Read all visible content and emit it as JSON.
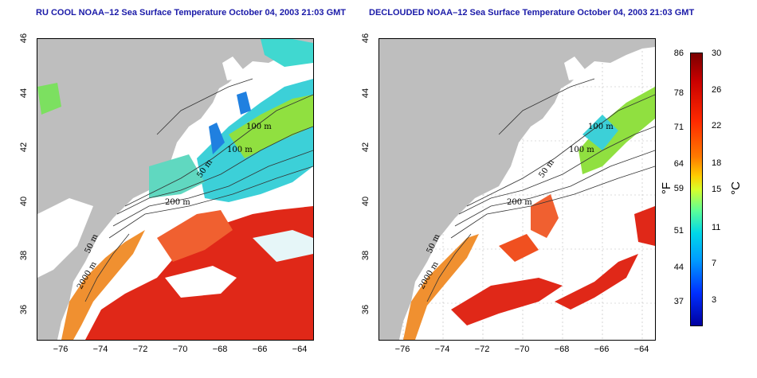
{
  "left_map": {
    "title": "RU COOL NOAA–12 Sea Surface Temperature October 04, 2003 21:03 GMT",
    "contours": [
      "100 m",
      "100 m",
      "50 m",
      "200 m",
      "50 m",
      "2000 m"
    ]
  },
  "right_map": {
    "title": "DECLOUDED NOAA–12 Sea Surface Temperature October 04, 2003 21:03 GMT",
    "contours": [
      "100 m",
      "100 m",
      "50 m",
      "200 m",
      "50 m",
      "2000 m"
    ]
  },
  "axes": {
    "lat_ticks": [
      "36",
      "38",
      "40",
      "42",
      "44",
      "46"
    ],
    "lon_ticks": [
      "−76",
      "−74",
      "−72",
      "−70",
      "−68",
      "−66",
      "−64"
    ]
  },
  "colorbar": {
    "f_labels": [
      "86",
      "78",
      "71",
      "64",
      "59",
      "51",
      "44",
      "37"
    ],
    "c_labels": [
      "30",
      "26",
      "22",
      "18",
      "15",
      "11",
      "7",
      "3"
    ],
    "f_unit": "°F",
    "c_unit": "°C",
    "colors": [
      "#7a0000",
      "#c80000",
      "#ff2a00",
      "#ff7a00",
      "#ffcc00",
      "#d8ff2a",
      "#5aff9a",
      "#00d8e8",
      "#009cff",
      "#0030ff",
      "#0000a0"
    ]
  },
  "colors": {
    "land": "#bebebe",
    "warm": "#e02818",
    "orange": "#f07828",
    "cyan": "#3cd0d8",
    "green": "#90e040",
    "title": "#1a1aa8"
  }
}
